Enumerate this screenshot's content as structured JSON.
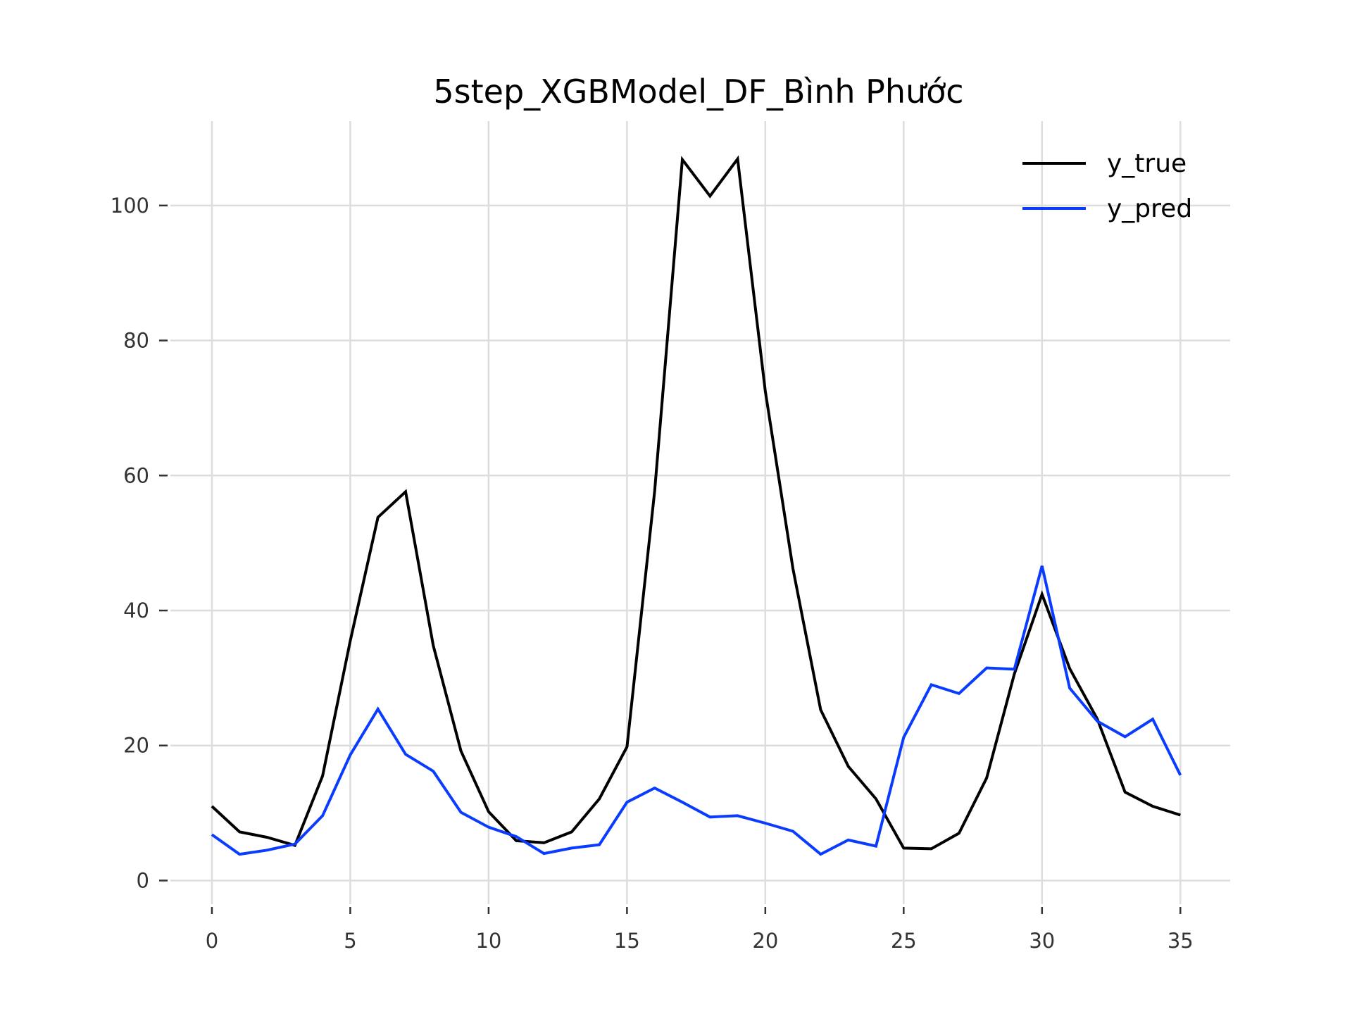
{
  "chart_data": {
    "type": "line",
    "title": "5step_XGBModel_DF_Bình Phước",
    "xlabel": "",
    "ylabel": "",
    "x": [
      0,
      1,
      2,
      3,
      4,
      5,
      6,
      7,
      8,
      9,
      10,
      11,
      12,
      13,
      14,
      15,
      16,
      17,
      18,
      19,
      20,
      21,
      22,
      23,
      24,
      25,
      26,
      27,
      28,
      29,
      30,
      31,
      32,
      33,
      34,
      35
    ],
    "xticks": [
      0,
      5,
      10,
      15,
      20,
      25,
      30,
      35
    ],
    "yticks": [
      0,
      20,
      40,
      60,
      80,
      100
    ],
    "xlim": [
      -1.5,
      36.8
    ],
    "ylim": [
      -3.5,
      112.5
    ],
    "grid": true,
    "legend_position": "top-right",
    "series": [
      {
        "name": "y_true",
        "color": "#000000",
        "values": [
          11.0,
          7.2,
          6.4,
          5.2,
          15.5,
          35.5,
          53.8,
          57.6,
          34.8,
          19.2,
          10.2,
          5.9,
          5.6,
          7.2,
          12.1,
          19.8,
          57.7,
          106.8,
          101.4,
          106.9,
          72.5,
          46.2,
          25.3,
          16.9,
          12.1,
          4.8,
          4.7,
          7.0,
          15.2,
          30.6,
          42.4,
          31.4,
          23.9,
          13.1,
          11.0,
          9.7
        ]
      },
      {
        "name": "y_pred",
        "color": "#0a3cff",
        "values": [
          6.8,
          3.9,
          4.5,
          5.4,
          9.6,
          18.6,
          25.4,
          18.7,
          16.2,
          10.1,
          7.9,
          6.5,
          4.0,
          4.8,
          5.3,
          11.6,
          13.7,
          11.6,
          9.4,
          9.6,
          8.5,
          7.3,
          3.9,
          6.0,
          5.1,
          21.2,
          29.0,
          27.7,
          31.5,
          31.3,
          46.6,
          28.5,
          23.6,
          21.3,
          23.9,
          15.6
        ]
      }
    ]
  }
}
